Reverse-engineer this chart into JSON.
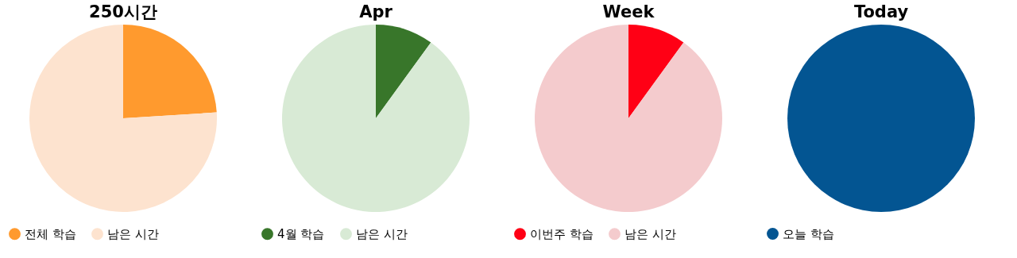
{
  "chart_data": [
    {
      "type": "pie",
      "title": "250시간",
      "categories": [
        "전체 학습",
        "남은 시간"
      ],
      "values": [
        24,
        76
      ],
      "colors": [
        "#ff9a2e",
        "#fde3cf"
      ],
      "legend": "bottom"
    },
    {
      "type": "pie",
      "title": "Apr",
      "categories": [
        "4월 학습",
        "남은 시간"
      ],
      "values": [
        10,
        90
      ],
      "colors": [
        "#38762a",
        "#d8ead5"
      ],
      "legend": "bottom"
    },
    {
      "type": "pie",
      "title": "Week",
      "categories": [
        "이번주 학습",
        "남은 시간"
      ],
      "values": [
        10,
        90
      ],
      "colors": [
        "#ff0015",
        "#f4cbcd"
      ],
      "legend": "bottom"
    },
    {
      "type": "pie",
      "title": "Today",
      "categories": [
        "오늘 학습"
      ],
      "values": [
        100
      ],
      "colors": [
        "#035592"
      ],
      "legend": "bottom"
    }
  ]
}
